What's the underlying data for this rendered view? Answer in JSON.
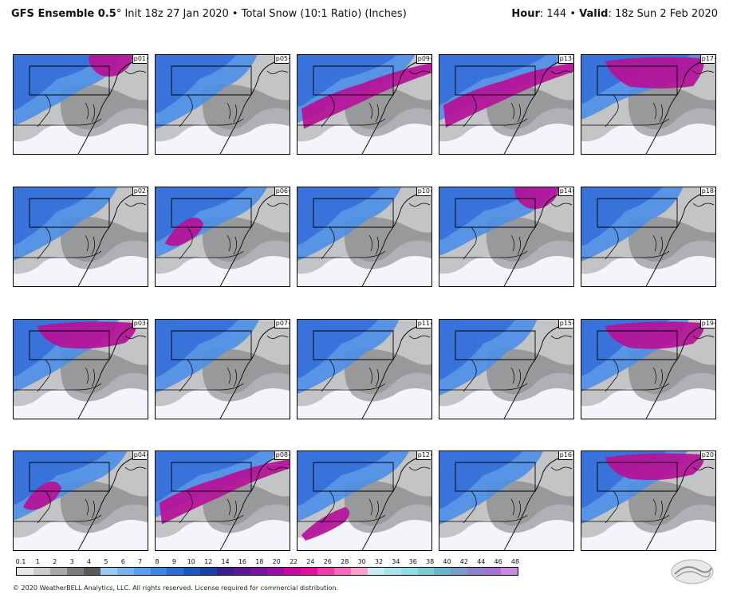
{
  "header": {
    "title_bold": "GFS Ensemble 0.5",
    "title_rest": "° Init 18z 27 Jan 2020 • Total Snow (10:1 Ratio) (Inches)",
    "hour_label": "Hour",
    "hour_value": ": 144 • ",
    "valid_label": "Valid",
    "valid_value": ": 18z Sun 2 Feb 2020"
  },
  "panels": [
    {
      "label": "p01",
      "intensity": 0.55,
      "heavy_zone": "northeast"
    },
    {
      "label": "p05",
      "intensity": 0.35,
      "heavy_zone": "none"
    },
    {
      "label": "p09",
      "intensity": 0.75,
      "heavy_zone": "central-band"
    },
    {
      "label": "p13",
      "intensity": 0.9,
      "heavy_zone": "central-band"
    },
    {
      "label": "p17",
      "intensity": 0.95,
      "heavy_zone": "north"
    },
    {
      "label": "p02",
      "intensity": 0.4,
      "heavy_zone": "none"
    },
    {
      "label": "p06",
      "intensity": 0.6,
      "heavy_zone": "west"
    },
    {
      "label": "p10",
      "intensity": 0.4,
      "heavy_zone": "none"
    },
    {
      "label": "p14",
      "intensity": 0.7,
      "heavy_zone": "northeast"
    },
    {
      "label": "p18",
      "intensity": 0.35,
      "heavy_zone": "none"
    },
    {
      "label": "p03",
      "intensity": 0.45,
      "heavy_zone": "north"
    },
    {
      "label": "p07",
      "intensity": 0.4,
      "heavy_zone": "none"
    },
    {
      "label": "p11",
      "intensity": 0.35,
      "heavy_zone": "none"
    },
    {
      "label": "p15",
      "intensity": 0.25,
      "heavy_zone": "none"
    },
    {
      "label": "p19",
      "intensity": 0.5,
      "heavy_zone": "north"
    },
    {
      "label": "p04",
      "intensity": 0.65,
      "heavy_zone": "west"
    },
    {
      "label": "p08",
      "intensity": 0.85,
      "heavy_zone": "central-band"
    },
    {
      "label": "p12",
      "intensity": 0.6,
      "heavy_zone": "south"
    },
    {
      "label": "p16",
      "intensity": 0.4,
      "heavy_zone": "none"
    },
    {
      "label": "p20",
      "intensity": 0.45,
      "heavy_zone": "north"
    }
  ],
  "colorbar": {
    "labels": [
      "0.1",
      "1",
      "2",
      "3",
      "4",
      "5",
      "6",
      "7",
      "8",
      "9",
      "10",
      "12",
      "14",
      "16",
      "18",
      "20",
      "22",
      "24",
      "26",
      "28",
      "30",
      "32",
      "34",
      "36",
      "38",
      "40",
      "42",
      "44",
      "46",
      "48"
    ],
    "colors": [
      "#e6e6e6",
      "#cccccc",
      "#a8a8a8",
      "#7c7c7c",
      "#5a5a5a",
      "#9ec8f0",
      "#7ab4ee",
      "#5a9ef0",
      "#3d86ea",
      "#2b6fd6",
      "#1f55c0",
      "#1a3fa8",
      "#3c1e8c",
      "#5a1896",
      "#7b12a0",
      "#9c0ea8",
      "#c40ca0",
      "#e2109a",
      "#f03aa8",
      "#f46ab8",
      "#f7a0cc",
      "#c8eaf2",
      "#a8e4ee",
      "#8cdcea",
      "#7acad8",
      "#6cb4c8",
      "#7a9cc8",
      "#8c84c8",
      "#a474d0",
      "#c888e4"
    ]
  },
  "footer": "© 2020 WeatherBELL Analytics, LLC. All rights reserved. License required for commercial distribution.",
  "logo_name": "weatherbell-logo"
}
